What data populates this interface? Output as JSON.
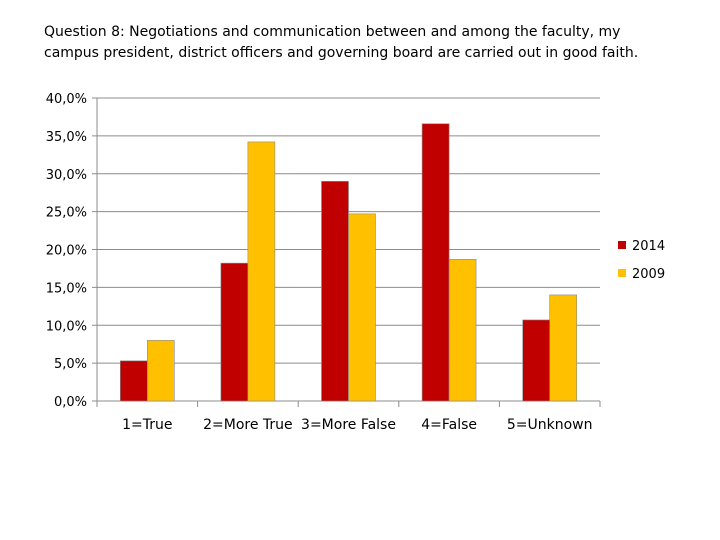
{
  "title_lines": [
    "Question 8: Negotiations and communication between and among the faculty, my",
    "campus president, district officers and governing board are carried out in good faith."
  ],
  "chart_data": {
    "type": "bar",
    "title": "Question 8: Negotiations and communication between and among the faculty, my campus president, district officers and governing board are carried out in good faith.",
    "categories": [
      "1=True",
      "2=More True",
      "3=More False",
      "4=False",
      "5=Unknown"
    ],
    "series": [
      {
        "name": "2014",
        "color": "#C00000",
        "values": [
          5.3,
          18.2,
          29.0,
          36.6,
          10.7
        ]
      },
      {
        "name": "2009",
        "color": "#FFC000",
        "values": [
          8.0,
          34.2,
          24.7,
          18.7,
          14.0
        ]
      }
    ],
    "yticks": [
      "0,0%",
      "5,0%",
      "10,0%",
      "15,0%",
      "20,0%",
      "25,0%",
      "30,0%",
      "35,0%",
      "40,0%"
    ],
    "ylim": [
      0,
      40
    ],
    "ystep": 5,
    "grid": true,
    "legend_position": "right",
    "xlabel": "",
    "ylabel": ""
  }
}
